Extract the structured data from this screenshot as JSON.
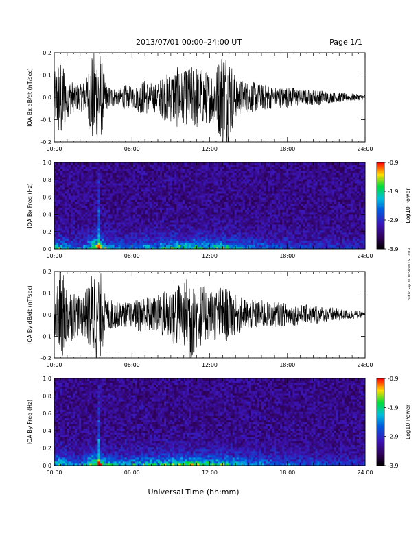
{
  "header": {
    "title": "2013/07/01  00:00–24:00 UT",
    "page": "Page 1/1"
  },
  "side_note": "mit Fri Sep 20 10:58:09 CST 2019",
  "footer": {
    "xlabel": "Universal Time (hh:mm)"
  },
  "chart_data": [
    {
      "type": "line",
      "ylabel": "IQA Bx dB/dt (nT/sec)",
      "xlim": [
        0,
        24
      ],
      "ylim": [
        -0.2,
        0.2
      ],
      "x_ticks": [
        "00:00",
        "06:00",
        "12:00",
        "18:00",
        "24:00"
      ],
      "y_ticks": [
        "-0.2",
        "-0.1",
        "0.0",
        "0.1",
        "0.2"
      ],
      "series": [
        {
          "x": [
            0,
            0.5,
            1,
            1.5,
            2,
            2.5,
            3,
            3.5,
            4,
            4.5,
            5,
            5.5,
            6,
            6.5,
            7,
            7.5,
            8,
            8.5,
            9,
            9.5,
            10,
            10.5,
            11,
            11.5,
            12,
            12.5,
            13,
            13.5,
            14,
            14.5,
            15,
            15.5,
            16,
            16.5,
            17,
            17.5,
            18,
            18.5,
            19,
            19.5,
            20,
            20.5,
            21,
            21.5,
            22,
            22.5,
            23,
            23.5,
            24
          ],
          "amplitude": [
            0.09,
            0.2,
            0.08,
            0.06,
            0.05,
            0.08,
            0.2,
            0.2,
            0.05,
            0.04,
            0.03,
            0.05,
            0.04,
            0.06,
            0.07,
            0.06,
            0.06,
            0.09,
            0.1,
            0.12,
            0.1,
            0.12,
            0.13,
            0.11,
            0.1,
            0.12,
            0.2,
            0.18,
            0.08,
            0.07,
            0.06,
            0.06,
            0.05,
            0.05,
            0.04,
            0.04,
            0.04,
            0.04,
            0.03,
            0.03,
            0.03,
            0.03,
            0.025,
            0.02,
            0.02,
            0.015,
            0.015,
            0.012,
            0.01
          ]
        }
      ]
    },
    {
      "type": "heatmap",
      "ylabel": "IQA Bx Freq (Hz)",
      "xlim": [
        0,
        24
      ],
      "ylim": [
        0,
        1.0
      ],
      "x_ticks": [
        "00:00",
        "06:00",
        "12:00",
        "18:00",
        "24:00"
      ],
      "y_ticks": [
        "0.0",
        "0.2",
        "0.4",
        "0.6",
        "0.8",
        "1.0"
      ],
      "colorbar": {
        "label": "Log10 Power",
        "ticks": [
          "-0.9",
          "-1.9",
          "-2.9",
          "-3.9"
        ],
        "range": [
          -3.9,
          -0.9
        ]
      },
      "low_freq_intensity": [
        0.5,
        0.6,
        0.4,
        0.35,
        0.3,
        0.4,
        0.9,
        0.8,
        0.5,
        0.4,
        0.35,
        0.4,
        0.35,
        0.4,
        0.45,
        0.4,
        0.45,
        0.5,
        0.55,
        0.6,
        0.55,
        0.6,
        0.6,
        0.55,
        0.5,
        0.55,
        0.6,
        0.5,
        0.45,
        0.4,
        0.38,
        0.36,
        0.34,
        0.32,
        0.3,
        0.28,
        0.27,
        0.26,
        0.25,
        0.24,
        0.23,
        0.22,
        0.21,
        0.2,
        0.2,
        0.19,
        0.18,
        0.18,
        0.17
      ]
    },
    {
      "type": "line",
      "ylabel": "IQA By dB/dt (nT/sec)",
      "xlim": [
        0,
        24
      ],
      "ylim": [
        -0.2,
        0.2
      ],
      "x_ticks": [
        "00:00",
        "06:00",
        "12:00",
        "18:00",
        "24:00"
      ],
      "y_ticks": [
        "-0.2",
        "-0.1",
        "0.0",
        "0.1",
        "0.2"
      ],
      "series": [
        {
          "x": [
            0,
            0.5,
            1,
            1.5,
            2,
            2.5,
            3,
            3.5,
            4,
            4.5,
            5,
            5.5,
            6,
            6.5,
            7,
            7.5,
            8,
            8.5,
            9,
            9.5,
            10,
            10.5,
            11,
            11.5,
            12,
            12.5,
            13,
            13.5,
            14,
            14.5,
            15,
            15.5,
            16,
            16.5,
            17,
            17.5,
            18,
            18.5,
            19,
            19.5,
            20,
            20.5,
            21,
            21.5,
            22,
            22.5,
            23,
            23.5,
            24
          ],
          "amplitude": [
            0.1,
            0.2,
            0.12,
            0.1,
            0.08,
            0.1,
            0.2,
            0.2,
            0.07,
            0.06,
            0.05,
            0.05,
            0.05,
            0.07,
            0.08,
            0.07,
            0.08,
            0.1,
            0.12,
            0.14,
            0.12,
            0.2,
            0.14,
            0.12,
            0.1,
            0.11,
            0.12,
            0.1,
            0.08,
            0.07,
            0.06,
            0.06,
            0.06,
            0.05,
            0.05,
            0.05,
            0.045,
            0.045,
            0.04,
            0.04,
            0.04,
            0.035,
            0.03,
            0.03,
            0.025,
            0.02,
            0.02,
            0.015,
            0.01
          ]
        }
      ]
    },
    {
      "type": "heatmap",
      "ylabel": "IQA By Freq (Hz)",
      "xlim": [
        0,
        24
      ],
      "ylim": [
        0,
        1.0
      ],
      "x_ticks": [
        "00:00",
        "06:00",
        "12:00",
        "18:00",
        "24:00"
      ],
      "y_ticks": [
        "0.0",
        "0.2",
        "0.4",
        "0.6",
        "0.8",
        "1.0"
      ],
      "colorbar": {
        "label": "Log10 Power",
        "ticks": [
          "-0.9",
          "-1.9",
          "-2.9",
          "-3.9"
        ],
        "range": [
          -3.9,
          -0.9
        ]
      },
      "low_freq_intensity": [
        0.5,
        0.6,
        0.45,
        0.4,
        0.35,
        0.45,
        0.9,
        0.85,
        0.55,
        0.45,
        0.4,
        0.45,
        0.45,
        0.5,
        0.55,
        0.5,
        0.55,
        0.6,
        0.65,
        0.7,
        0.65,
        0.7,
        0.7,
        0.65,
        0.6,
        0.6,
        0.6,
        0.55,
        0.5,
        0.45,
        0.42,
        0.4,
        0.38,
        0.36,
        0.34,
        0.32,
        0.3,
        0.29,
        0.28,
        0.27,
        0.26,
        0.25,
        0.24,
        0.23,
        0.22,
        0.21,
        0.2,
        0.2,
        0.19
      ]
    }
  ]
}
